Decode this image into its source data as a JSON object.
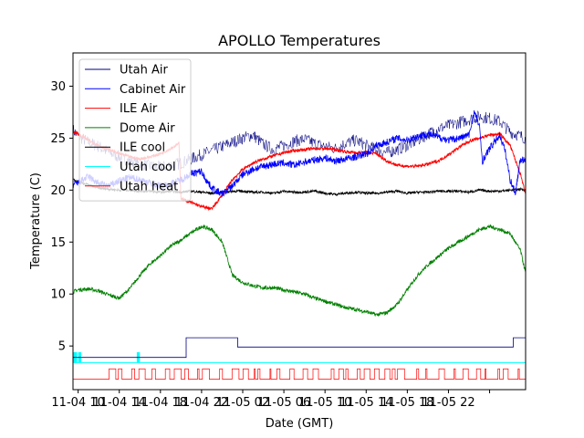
{
  "chart_data": {
    "type": "line",
    "title": "APOLLO Temperatures",
    "xlabel": "Date (GMT)",
    "ylabel": "Temperature (C)",
    "xlim": [
      -0.5,
      43.5
    ],
    "ylim": [
      0.8,
      33.2
    ],
    "yticks": [
      5,
      10,
      15,
      20,
      25,
      30
    ],
    "ytick_labels": [
      "5",
      "10",
      "15",
      "20",
      "25",
      "30"
    ],
    "xticks": [
      0,
      4,
      8,
      12,
      16,
      20,
      24,
      28,
      32,
      36,
      40
    ],
    "xtick_labels": [
      "11-04 10",
      "11-04 14",
      "11-04 18",
      "11-04 22",
      "11-05 02",
      "11-05 06",
      "11-05 10",
      "11-05 14",
      "11-05 18",
      "11-05 22"
    ],
    "xtick_label_positions": [
      0,
      4,
      8,
      12,
      16,
      20,
      24,
      28,
      32,
      36
    ],
    "grid": false,
    "legend_position": "upper-left",
    "series": [
      {
        "name": "Utah Air",
        "color": "#000080",
        "key": "utah_air",
        "x": [
          -0.5,
          0,
          1,
          2,
          3,
          4,
          5,
          6,
          7,
          8,
          9,
          10,
          11,
          12,
          13,
          14,
          15,
          16,
          17,
          18,
          19,
          20,
          21,
          22,
          23,
          24,
          25,
          26,
          27,
          28,
          29,
          30,
          31,
          32,
          33,
          34,
          35,
          36,
          37,
          38,
          39,
          40,
          41,
          42,
          43,
          43.5
        ],
        "y": [
          25.8,
          25.2,
          24.6,
          24.2,
          23.6,
          23.2,
          22.8,
          22.5,
          22.3,
          22.2,
          22.4,
          22.6,
          23.0,
          23.4,
          23.8,
          24.2,
          24.6,
          25.0,
          25.3,
          24.4,
          23.9,
          24.3,
          24.7,
          24.9,
          24.5,
          24.2,
          24.0,
          24.5,
          24.8,
          24.3,
          23.9,
          23.6,
          23.9,
          24.3,
          24.8,
          25.4,
          25.9,
          26.2,
          26.5,
          26.8,
          27.1,
          26.9,
          26.6,
          25.6,
          25.2,
          25.0
        ]
      },
      {
        "name": "Cabinet Air",
        "color": "#0000ff",
        "key": "cabinet_air",
        "x": [
          -0.5,
          0,
          1,
          2,
          3,
          4,
          5,
          6,
          7,
          8,
          9,
          10,
          11,
          12,
          12.3,
          13,
          14,
          15,
          16,
          17,
          18,
          19,
          20,
          21,
          22,
          23,
          24,
          25,
          26,
          27,
          28,
          28.5,
          29,
          30,
          31,
          32,
          33,
          34,
          35,
          36,
          37,
          38,
          38.5,
          39,
          39.3,
          40,
          41,
          41.5,
          42,
          42.5,
          43,
          43.5
        ],
        "y": [
          20.5,
          20.7,
          21.3,
          20.6,
          20.4,
          20.9,
          21.2,
          21.0,
          20.7,
          20.4,
          20.6,
          21.0,
          21.6,
          21.8,
          21.2,
          20.2,
          19.6,
          20.4,
          21.5,
          22.0,
          22.3,
          22.5,
          22.6,
          22.4,
          22.7,
          22.9,
          23.1,
          22.8,
          23.0,
          23.2,
          23.5,
          23.8,
          24.3,
          24.6,
          25.0,
          24.8,
          25.2,
          25.4,
          25.1,
          24.8,
          25.0,
          25.3,
          27.5,
          26.2,
          22.8,
          24.0,
          25.3,
          23.8,
          21.0,
          19.7,
          23.0,
          22.8
        ],
        "segments": "see generated"
      },
      {
        "name": "ILE Air",
        "color": "#ff0000",
        "key": "ile_air",
        "x": [
          -0.5,
          0,
          1,
          2,
          3,
          4,
          5,
          6,
          7,
          8,
          9,
          9.8,
          10,
          11,
          12,
          13,
          14,
          15,
          16,
          17,
          18,
          19,
          20,
          21,
          22,
          23,
          24,
          25,
          26,
          27,
          28,
          29,
          30,
          31,
          32,
          33,
          34,
          35,
          36,
          37,
          38,
          39,
          40,
          41,
          42,
          43,
          43.5
        ],
        "y": [
          25.6,
          25.4,
          24.8,
          24.3,
          23.9,
          23.5,
          23.2,
          23.0,
          23.2,
          23.5,
          24.0,
          24.5,
          19.2,
          18.8,
          18.4,
          18.2,
          19.5,
          21.0,
          22.0,
          22.6,
          23.0,
          23.3,
          23.6,
          23.8,
          23.9,
          24.0,
          24.0,
          23.9,
          23.7,
          23.6,
          23.6,
          23.5,
          22.8,
          22.4,
          22.3,
          22.3,
          22.5,
          22.8,
          23.4,
          24.1,
          24.7,
          25.0,
          25.3,
          25.4,
          24.3,
          21.5,
          19.6
        ]
      },
      {
        "name": "Dome Air",
        "color": "#008000",
        "key": "dome_air",
        "x": [
          -0.5,
          0,
          1,
          2,
          3,
          4,
          5,
          6,
          7,
          8,
          9,
          10,
          11,
          12,
          13,
          14,
          15,
          16,
          17,
          18,
          19,
          20,
          21,
          22,
          23,
          24,
          25,
          26,
          27,
          28,
          29,
          30,
          31,
          32,
          33,
          34,
          35,
          36,
          37,
          38,
          39,
          40,
          41,
          42,
          43,
          43.5
        ],
        "y": [
          10.2,
          10.4,
          10.5,
          10.3,
          9.9,
          9.6,
          10.5,
          11.8,
          12.9,
          13.7,
          14.6,
          15.2,
          15.9,
          16.5,
          16.2,
          15.0,
          11.8,
          11.1,
          10.8,
          10.6,
          10.6,
          10.4,
          10.2,
          10.0,
          9.6,
          9.3,
          9.0,
          8.7,
          8.5,
          8.3,
          8.0,
          8.2,
          9.0,
          10.4,
          11.8,
          12.8,
          13.6,
          14.4,
          15.0,
          15.6,
          16.2,
          16.5,
          16.2,
          15.8,
          14.2,
          12.0
        ]
      },
      {
        "name": "ILE cool",
        "color": "#000000",
        "key": "ile_cool",
        "x": [
          -0.5,
          0,
          1,
          2,
          3,
          4,
          5,
          6,
          7,
          8,
          9,
          10,
          11,
          12,
          13,
          14,
          15,
          16,
          17,
          18,
          19,
          20,
          21,
          22,
          23,
          24,
          25,
          26,
          27,
          28,
          29,
          30,
          31,
          32,
          33,
          34,
          35,
          36,
          37,
          38,
          39,
          40,
          41,
          42,
          43,
          43.5
        ],
        "y": [
          21.0,
          20.8,
          20.5,
          20.2,
          20.1,
          20.0,
          20.0,
          19.9,
          19.9,
          19.8,
          19.9,
          19.8,
          19.9,
          19.8,
          19.7,
          19.8,
          19.9,
          19.9,
          19.8,
          19.8,
          19.7,
          19.9,
          19.8,
          19.8,
          19.9,
          19.7,
          19.6,
          19.7,
          19.8,
          19.7,
          19.7,
          19.8,
          19.9,
          19.7,
          19.8,
          19.8,
          19.9,
          19.9,
          19.9,
          19.8,
          20.0,
          19.9,
          19.9,
          20.0,
          20.1,
          20.0
        ]
      },
      {
        "name": "Utah cool",
        "color": "#00ffff",
        "key": "utah_cool",
        "x": [
          -0.5,
          43.5
        ],
        "y": [
          3.4,
          3.4
        ]
      },
      {
        "name": "Utah heat",
        "color": "#ff0000",
        "key": "utah_heat",
        "levels": [
          1.8,
          2.8
        ]
      },
      {
        "name": "",
        "color": "#000080",
        "key": "utah_step",
        "x": [
          -0.5,
          10.5,
          10.5,
          15.5,
          15.5,
          42.3,
          42.3,
          43.5
        ],
        "y": [
          3.9,
          3.9,
          5.8,
          5.8,
          4.9,
          4.9,
          5.8,
          5.8
        ]
      }
    ]
  }
}
